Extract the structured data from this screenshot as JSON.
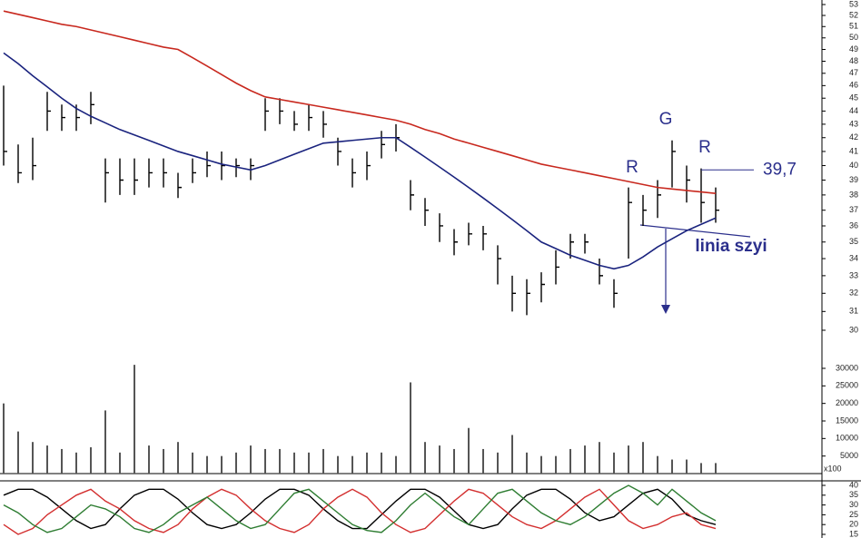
{
  "chart_data": [
    {
      "type": "ohlc",
      "log": true,
      "ylim": [
        30,
        53
      ],
      "yticks": [
        30,
        31,
        32,
        33,
        34,
        35,
        36,
        37,
        38,
        39,
        40,
        41,
        42,
        43,
        44,
        45,
        46,
        47,
        48,
        49,
        50,
        51,
        52,
        53
      ],
      "color": "#000000",
      "high": [
        46,
        41.5,
        42,
        45.5,
        44.5,
        44.5,
        45.5,
        40.5,
        40.5,
        40.5,
        40.5,
        40.5,
        39.5,
        40.5,
        41,
        41,
        40.5,
        40.5,
        45,
        45,
        44,
        44.5,
        44,
        42,
        40.5,
        41,
        42.5,
        43,
        39,
        37.8,
        36.8,
        35.8,
        36.2,
        36,
        34.8,
        33,
        32.8,
        33.2,
        34.5,
        35.5,
        35.5,
        34,
        32.8,
        38.5,
        38,
        39,
        41.8,
        40,
        39.8,
        38.5
      ],
      "low": [
        40,
        38.8,
        39,
        42.5,
        42.5,
        42.5,
        43,
        37.5,
        38,
        38,
        38.5,
        38.5,
        37.8,
        38.8,
        39.2,
        39,
        39.2,
        39,
        42.5,
        43,
        42.5,
        42.5,
        42,
        40,
        38.5,
        39,
        40.5,
        41,
        37,
        36,
        35,
        34.2,
        34.8,
        34.5,
        32.5,
        31,
        30.8,
        31.5,
        32.5,
        34,
        34.3,
        32.5,
        31.2,
        34,
        36,
        36.5,
        38.5,
        37.5,
        36.2,
        36.2
      ],
      "close": [
        41,
        39.5,
        40,
        44,
        43.5,
        43.5,
        44.5,
        39.5,
        39,
        39,
        39.5,
        39.5,
        38.5,
        39.5,
        40,
        40,
        40,
        40,
        44,
        44,
        43,
        43.5,
        43,
        41,
        39.5,
        40,
        41.5,
        42,
        38,
        37,
        36,
        35,
        35.5,
        35.5,
        34,
        32,
        32,
        32.5,
        33.5,
        35,
        35,
        33,
        32,
        37.5,
        37,
        38,
        41,
        39,
        37.5,
        37
      ],
      "series": [
        {
          "color": "#c8281e",
          "values": [
            52.4,
            52.1,
            51.8,
            51.5,
            51.2,
            51.0,
            50.7,
            50.4,
            50.1,
            49.8,
            49.5,
            49.2,
            49.0,
            48.3,
            47.6,
            46.9,
            46.2,
            45.6,
            45.1,
            44.9,
            44.7,
            44.5,
            44.3,
            44.1,
            43.9,
            43.7,
            43.5,
            43.3,
            43.0,
            42.6,
            42.3,
            41.9,
            41.6,
            41.3,
            41.0,
            40.7,
            40.4,
            40.1,
            39.9,
            39.7,
            39.5,
            39.3,
            39.1,
            38.9,
            38.7,
            38.5,
            38.4,
            38.3,
            38.2,
            38.1
          ]
        },
        {
          "color": "#1a237e",
          "values": [
            48.7,
            47.8,
            46.8,
            45.9,
            45.0,
            44.2,
            43.6,
            43.1,
            42.6,
            42.2,
            41.8,
            41.4,
            41.0,
            40.7,
            40.4,
            40.1,
            39.9,
            39.7,
            40.0,
            40.4,
            40.8,
            41.2,
            41.6,
            41.7,
            41.8,
            41.9,
            42.0,
            42.0,
            41.3,
            40.6,
            39.9,
            39.2,
            38.5,
            37.8,
            37.1,
            36.4,
            35.7,
            35.0,
            34.6,
            34.2,
            33.9,
            33.6,
            33.4,
            33.6,
            34.1,
            34.7,
            35.2,
            35.7,
            36.1,
            36.5
          ]
        }
      ],
      "annotations": [
        "R",
        "G",
        "R",
        "linia szyi"
      ],
      "level": {
        "value": 39.7,
        "label": "39,7"
      }
    },
    {
      "type": "bar",
      "ylim": [
        0,
        30000
      ],
      "yticks": [
        5000,
        10000,
        15000,
        20000,
        25000,
        30000
      ],
      "unit": "x100",
      "color": "#555555",
      "values": [
        20000,
        12000,
        9000,
        8000,
        7000,
        6000,
        7500,
        18000,
        6000,
        31000,
        8000,
        7000,
        9000,
        6000,
        5000,
        5000,
        6000,
        8000,
        7000,
        7000,
        6000,
        6000,
        7000,
        5000,
        5000,
        6000,
        6000,
        5000,
        26000,
        9000,
        8000,
        7000,
        13000,
        7000,
        6000,
        11000,
        6000,
        5000,
        5000,
        7000,
        8000,
        9000,
        6000,
        8000,
        9000,
        5000,
        4000,
        4000,
        3000,
        3000
      ]
    },
    {
      "type": "line",
      "ylim": [
        15,
        40
      ],
      "yticks": [
        15,
        20,
        25,
        30,
        35,
        40
      ],
      "series": [
        {
          "color": "#000000",
          "values": [
            35,
            38,
            38,
            34,
            28,
            22,
            18,
            20,
            28,
            35,
            38,
            38,
            33,
            26,
            20,
            18,
            20,
            26,
            33,
            38,
            38,
            35,
            28,
            22,
            18,
            18,
            25,
            32,
            38,
            38,
            34,
            27,
            20,
            18,
            20,
            28,
            35,
            38,
            38,
            33,
            26,
            22,
            24,
            30,
            36,
            38,
            33,
            25,
            22,
            20
          ]
        },
        {
          "color": "#d32f2f",
          "values": [
            20,
            15,
            18,
            25,
            30,
            35,
            38,
            32,
            28,
            22,
            18,
            16,
            20,
            28,
            34,
            38,
            35,
            28,
            22,
            18,
            16,
            20,
            28,
            34,
            38,
            34,
            26,
            20,
            16,
            18,
            25,
            32,
            38,
            36,
            30,
            24,
            20,
            18,
            22,
            28,
            34,
            38,
            30,
            22,
            18,
            20,
            24,
            26,
            20,
            18
          ]
        },
        {
          "color": "#2e7d32",
          "values": [
            30,
            26,
            20,
            16,
            18,
            24,
            30,
            28,
            24,
            18,
            16,
            20,
            26,
            30,
            34,
            28,
            22,
            18,
            20,
            28,
            36,
            38,
            32,
            26,
            20,
            17,
            16,
            22,
            30,
            36,
            30,
            24,
            20,
            28,
            36,
            38,
            32,
            26,
            22,
            20,
            24,
            30,
            36,
            40,
            36,
            30,
            38,
            32,
            26,
            22
          ]
        }
      ]
    }
  ]
}
